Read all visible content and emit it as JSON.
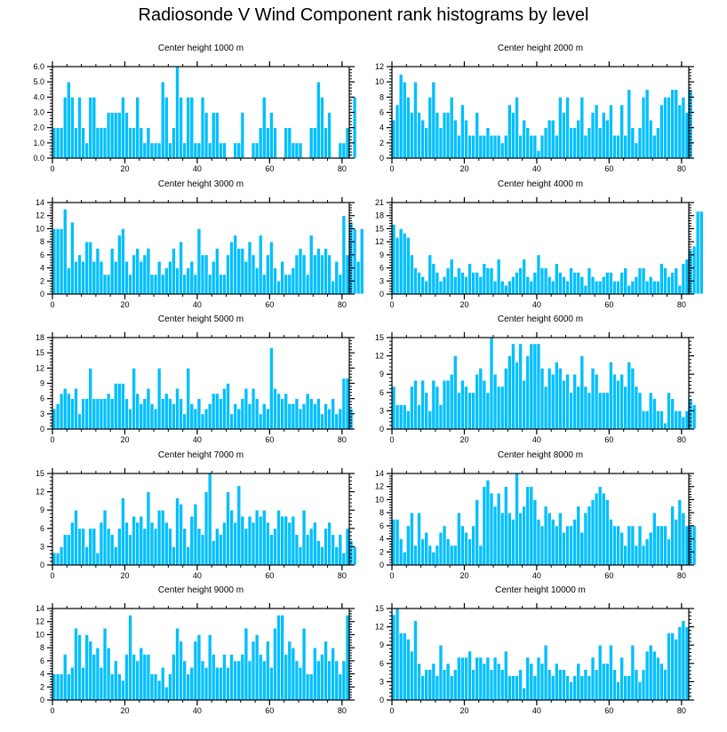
{
  "figure": {
    "title": "Radiosonde V Wind Component rank histograms by level",
    "bar_color": "#00BFFF",
    "bar_edge_color": "#FFFFFF",
    "axis_color": "#000000"
  },
  "chart_data": [
    {
      "type": "bar",
      "title": "Center height 1000 m",
      "xlim": [
        0,
        82
      ],
      "ylim": [
        0,
        6
      ],
      "xticks": [
        0,
        20,
        40,
        60,
        80
      ],
      "xtick_labels": [
        "0",
        "20",
        "40",
        "60",
        "80"
      ],
      "yticks": [
        0,
        1,
        2,
        3,
        4,
        5,
        6
      ],
      "ytick_labels": [
        "0.0",
        "1.0",
        "2.0",
        "3.0",
        "4.0",
        "5.0",
        "6.0"
      ],
      "values": [
        2,
        2,
        2,
        4,
        5,
        4,
        2,
        4,
        2,
        1,
        4,
        4,
        2,
        2,
        2,
        3,
        3,
        3,
        3,
        4,
        3,
        2,
        2,
        4,
        2,
        1,
        2,
        1,
        1,
        1,
        5,
        4,
        1,
        2,
        6,
        4,
        1,
        4,
        4,
        1,
        1,
        4,
        3,
        1,
        3,
        3,
        1,
        1,
        0,
        0,
        1,
        1,
        3,
        0,
        0,
        1,
        1,
        2,
        4,
        2,
        3,
        2,
        0,
        0,
        2,
        2,
        1,
        1,
        1,
        0,
        0,
        2,
        2,
        5,
        4,
        2,
        3,
        0,
        0,
        1,
        1,
        2,
        0,
        4
      ]
    },
    {
      "type": "bar",
      "title": "Center height 2000 m",
      "xlim": [
        0,
        82
      ],
      "ylim": [
        0,
        12
      ],
      "xticks": [
        0,
        20,
        40,
        60,
        80
      ],
      "xtick_labels": [
        "0",
        "20",
        "40",
        "60",
        "80"
      ],
      "yticks": [
        0,
        2,
        4,
        6,
        8,
        10,
        12
      ],
      "ytick_labels": [
        "0",
        "2",
        "4",
        "6",
        "8",
        "10",
        "12"
      ],
      "values": [
        5,
        7,
        11,
        10,
        8,
        6,
        10,
        6,
        5,
        4,
        8,
        10,
        6,
        4,
        6,
        6,
        8,
        5,
        3,
        7,
        5,
        3,
        3,
        6,
        3,
        3,
        4,
        3,
        3,
        3,
        2,
        3,
        7,
        6,
        8,
        3,
        5,
        4,
        3,
        3,
        1,
        3,
        4,
        5,
        5,
        3,
        8,
        6,
        8,
        4,
        4,
        5,
        8,
        3,
        4,
        6,
        7,
        4,
        6,
        5,
        7,
        3,
        3,
        7,
        3,
        9,
        4,
        2,
        4,
        8,
        9,
        5,
        3,
        4,
        7,
        8,
        8,
        9,
        9,
        7,
        8,
        6,
        9
      ]
    },
    {
      "type": "bar",
      "title": "Center height 3000 m",
      "xlim": [
        0,
        82
      ],
      "ylim": [
        0,
        14
      ],
      "xticks": [
        0,
        20,
        40,
        60,
        80
      ],
      "xtick_labels": [
        "0",
        "20",
        "40",
        "60",
        "80"
      ],
      "yticks": [
        0,
        2,
        4,
        6,
        8,
        10,
        12,
        14
      ],
      "ytick_labels": [
        "0",
        "2",
        "4",
        "6",
        "8",
        "10",
        "12",
        "14"
      ],
      "values": [
        10,
        10,
        10,
        13,
        4,
        11,
        5,
        6,
        5,
        8,
        8,
        5,
        7,
        5,
        3,
        3,
        7,
        5,
        9,
        10,
        5,
        3,
        6,
        7,
        5,
        6,
        7,
        3,
        3,
        5,
        3,
        4,
        5,
        7,
        4,
        8,
        3,
        4,
        5,
        3,
        10,
        6,
        6,
        3,
        5,
        7,
        3,
        3,
        6,
        8,
        9,
        7,
        7,
        5,
        8,
        6,
        4,
        9,
        3,
        6,
        8,
        4,
        2,
        5,
        3,
        3,
        4,
        6,
        7,
        6,
        3,
        9,
        6,
        7,
        6,
        7,
        6,
        2,
        5,
        3,
        12,
        6,
        11,
        10,
        5,
        10
      ]
    },
    {
      "type": "bar",
      "title": "Center height 4000 m",
      "xlim": [
        0,
        82
      ],
      "ylim": [
        0,
        21
      ],
      "xticks": [
        0,
        20,
        40,
        60,
        80
      ],
      "xtick_labels": [
        "0",
        "20",
        "40",
        "60",
        "80"
      ],
      "yticks": [
        0,
        3,
        6,
        9,
        12,
        15,
        18,
        21
      ],
      "ytick_labels": [
        "0",
        "3",
        "6",
        "9",
        "12",
        "15",
        "18",
        "21"
      ],
      "values": [
        16,
        13,
        15,
        14,
        13,
        9,
        6,
        5,
        4,
        3,
        9,
        7,
        5,
        3,
        4,
        6,
        8,
        4,
        6,
        5,
        4,
        7,
        5,
        5,
        4,
        7,
        6,
        6,
        3,
        8,
        3,
        2,
        3,
        4,
        5,
        6,
        8,
        4,
        3,
        5,
        9,
        6,
        6,
        4,
        3,
        7,
        5,
        4,
        3,
        6,
        5,
        5,
        4,
        2,
        6,
        4,
        3,
        3,
        4,
        5,
        5,
        3,
        3,
        5,
        6,
        2,
        3,
        4,
        6,
        6,
        3,
        4,
        3,
        3,
        7,
        6,
        4,
        5,
        6,
        2,
        7,
        8,
        10,
        11,
        19,
        19
      ]
    },
    {
      "type": "bar",
      "title": "Center height 5000 m",
      "xlim": [
        0,
        82
      ],
      "ylim": [
        0,
        18
      ],
      "xticks": [
        0,
        20,
        40,
        60,
        80
      ],
      "xtick_labels": [
        "0",
        "20",
        "40",
        "60",
        "80"
      ],
      "yticks": [
        0,
        3,
        6,
        9,
        12,
        15,
        18
      ],
      "ytick_labels": [
        "0",
        "3",
        "6",
        "9",
        "12",
        "15",
        "18"
      ],
      "values": [
        4,
        5,
        7,
        8,
        7,
        6,
        8,
        3,
        6,
        6,
        12,
        6,
        6,
        6,
        6,
        7,
        6,
        9,
        9,
        9,
        6,
        4,
        12,
        7,
        5,
        6,
        8,
        5,
        4,
        12,
        6,
        7,
        6,
        5,
        8,
        6,
        3,
        12,
        5,
        4,
        6,
        3,
        4,
        5,
        7,
        7,
        6,
        8,
        9,
        3,
        5,
        4,
        6,
        8,
        5,
        8,
        6,
        3,
        5,
        4,
        16,
        8,
        7,
        6,
        7,
        5,
        5,
        6,
        4,
        5,
        7,
        6,
        5,
        6,
        3,
        5,
        4,
        6,
        3,
        4,
        10,
        10,
        4
      ]
    },
    {
      "type": "bar",
      "title": "Center height 6000 m",
      "xlim": [
        0,
        82
      ],
      "ylim": [
        0,
        15
      ],
      "xticks": [
        0,
        20,
        40,
        60,
        80
      ],
      "xtick_labels": [
        "0",
        "20",
        "40",
        "60",
        "80"
      ],
      "yticks": [
        0,
        3,
        6,
        9,
        12,
        15
      ],
      "ytick_labels": [
        "0",
        "3",
        "6",
        "9",
        "12",
        "15"
      ],
      "values": [
        7,
        4,
        4,
        4,
        3,
        7,
        8,
        4,
        8,
        6,
        3,
        8,
        7,
        4,
        8,
        8,
        9,
        12,
        6,
        8,
        7,
        6,
        6,
        9,
        10,
        8,
        6,
        15,
        9,
        7,
        7,
        10,
        12,
        14,
        11,
        14,
        8,
        12,
        14,
        14,
        14,
        10,
        7,
        10,
        9,
        11,
        10,
        8,
        9,
        6,
        9,
        7,
        12,
        7,
        6,
        10,
        9,
        6,
        6,
        6,
        11,
        9,
        8,
        9,
        7,
        11,
        10,
        7,
        6,
        3,
        3,
        6,
        5,
        3,
        3,
        1,
        6,
        5,
        3,
        3,
        2,
        3,
        5,
        4
      ]
    },
    {
      "type": "bar",
      "title": "Center height 7000 m",
      "xlim": [
        0,
        82
      ],
      "ylim": [
        0,
        15
      ],
      "xticks": [
        0,
        20,
        40,
        60,
        80
      ],
      "xtick_labels": [
        "0",
        "20",
        "40",
        "60",
        "80"
      ],
      "yticks": [
        0,
        3,
        6,
        9,
        12,
        15
      ],
      "ytick_labels": [
        "0",
        "3",
        "6",
        "9",
        "12",
        "15"
      ],
      "values": [
        2,
        2,
        3,
        5,
        5,
        7,
        9,
        6,
        6,
        3,
        6,
        6,
        2,
        7,
        9,
        6,
        5,
        3,
        6,
        11,
        7,
        5,
        8,
        7,
        8,
        6,
        12,
        7,
        6,
        9,
        9,
        7,
        6,
        3,
        11,
        10,
        6,
        3,
        8,
        10,
        6,
        5,
        12,
        15,
        4,
        6,
        5,
        7,
        12,
        9,
        7,
        13,
        8,
        6,
        8,
        7,
        9,
        8,
        9,
        7,
        5,
        6,
        9,
        8,
        8,
        7,
        8,
        5,
        3,
        9,
        5,
        6,
        7,
        4,
        3,
        6,
        7,
        5,
        3,
        5,
        2,
        6,
        4,
        3
      ]
    },
    {
      "type": "bar",
      "title": "Center height 8000 m",
      "xlim": [
        0,
        82
      ],
      "ylim": [
        0,
        14
      ],
      "xticks": [
        0,
        20,
        40,
        60,
        80
      ],
      "xtick_labels": [
        "0",
        "20",
        "40",
        "60",
        "80"
      ],
      "yticks": [
        0,
        2,
        4,
        6,
        8,
        10,
        12,
        14
      ],
      "ytick_labels": [
        "0",
        "2",
        "4",
        "6",
        "8",
        "10",
        "12",
        "14"
      ],
      "values": [
        7,
        7,
        4,
        2,
        6,
        8,
        3,
        8,
        4,
        5,
        3,
        2,
        3,
        5,
        6,
        4,
        3,
        3,
        8,
        6,
        5,
        4,
        6,
        10,
        3,
        12,
        13,
        11,
        9,
        11,
        8,
        12,
        8,
        7,
        14,
        8,
        9,
        12,
        12,
        10,
        7,
        6,
        9,
        8,
        7,
        6,
        8,
        5,
        6,
        6,
        7,
        9,
        5,
        8,
        9,
        10,
        11,
        12,
        11,
        10,
        7,
        6,
        6,
        5,
        3,
        6,
        6,
        3,
        6,
        3,
        4,
        5,
        8,
        6,
        6,
        6,
        4,
        9,
        7,
        10,
        8,
        6,
        6,
        6
      ]
    },
    {
      "type": "bar",
      "title": "Center height 9000 m",
      "xlim": [
        0,
        82
      ],
      "ylim": [
        0,
        14
      ],
      "xticks": [
        0,
        20,
        40,
        60,
        80
      ],
      "xtick_labels": [
        "0",
        "20",
        "40",
        "60",
        "80"
      ],
      "yticks": [
        0,
        2,
        4,
        6,
        8,
        10,
        12,
        14
      ],
      "ytick_labels": [
        "0",
        "2",
        "4",
        "6",
        "8",
        "10",
        "12",
        "14"
      ],
      "values": [
        4,
        4,
        4,
        7,
        4,
        5,
        11,
        10,
        5,
        10,
        9,
        7,
        8,
        5,
        11,
        8,
        4,
        6,
        4,
        3,
        7,
        13,
        7,
        6,
        8,
        7,
        7,
        4,
        4,
        3,
        5,
        2,
        4,
        7,
        11,
        9,
        6,
        4,
        5,
        9,
        10,
        6,
        5,
        10,
        7,
        5,
        5,
        7,
        5,
        7,
        6,
        6,
        7,
        11,
        6,
        9,
        10,
        7,
        6,
        9,
        5,
        11,
        13,
        13,
        7,
        9,
        8,
        6,
        5,
        11,
        4,
        4,
        8,
        6,
        7,
        9,
        6,
        8,
        6,
        4,
        6,
        13
      ]
    },
    {
      "type": "bar",
      "title": "Center height 10000 m",
      "xlim": [
        0,
        82
      ],
      "ylim": [
        0,
        15
      ],
      "xticks": [
        0,
        20,
        40,
        60,
        80
      ],
      "xtick_labels": [
        "0",
        "20",
        "40",
        "60",
        "80"
      ],
      "yticks": [
        0,
        3,
        6,
        9,
        12,
        15
      ],
      "ytick_labels": [
        "0",
        "3",
        "6",
        "9",
        "12",
        "15"
      ],
      "values": [
        14,
        15,
        11,
        11,
        10,
        8,
        13,
        6,
        4,
        5,
        5,
        6,
        4,
        9,
        5,
        6,
        4,
        5,
        7,
        7,
        7,
        8,
        5,
        7,
        7,
        6,
        7,
        5,
        7,
        6,
        5,
        8,
        4,
        4,
        4,
        5,
        2,
        7,
        6,
        4,
        7,
        6,
        9,
        5,
        4,
        6,
        5,
        5,
        4,
        3,
        4,
        6,
        4,
        5,
        4,
        7,
        5,
        9,
        6,
        6,
        9,
        5,
        3,
        7,
        4,
        4,
        9,
        5,
        3,
        5,
        8,
        9,
        8,
        7,
        6,
        5,
        11,
        11,
        10,
        12,
        13,
        12
      ]
    }
  ]
}
